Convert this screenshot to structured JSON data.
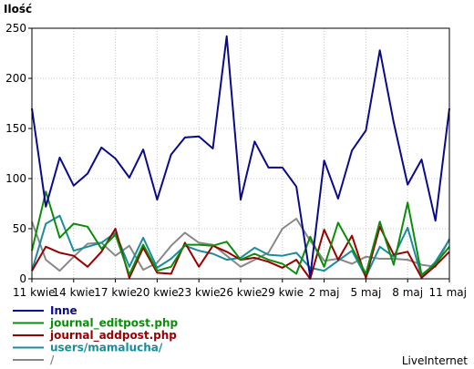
{
  "chart_data": {
    "type": "line",
    "ylabel": "Ilość",
    "ylim": [
      0,
      250
    ],
    "yticks": [
      0,
      50,
      100,
      150,
      200,
      250
    ],
    "grid": true,
    "legend_position": "bottom-left",
    "x_ticks": [
      {
        "index": 0,
        "label": "11 kwie"
      },
      {
        "index": 3,
        "label": "14 kwie"
      },
      {
        "index": 6,
        "label": "17 kwie"
      },
      {
        "index": 9,
        "label": "20 kwie"
      },
      {
        "index": 12,
        "label": "23 kwie"
      },
      {
        "index": 15,
        "label": "26 kwie"
      },
      {
        "index": 18,
        "label": "29 kwie"
      },
      {
        "index": 21,
        "label": "2 maj"
      },
      {
        "index": 24,
        "label": "5 maj"
      },
      {
        "index": 27,
        "label": "8 maj"
      },
      {
        "index": 30,
        "label": "11 maj"
      }
    ],
    "series": [
      {
        "name": "Inne",
        "color": "#0a0a8c",
        "values": [
          170,
          72,
          121,
          93,
          105,
          131,
          120,
          101,
          129,
          79,
          124,
          141,
          142,
          130,
          242,
          79,
          137,
          111,
          111,
          92,
          2,
          118,
          80,
          128,
          148,
          228,
          156,
          94,
          119,
          58,
          170
        ]
      },
      {
        "name": "journal_editpost.php",
        "color": "#0c8c0c",
        "values": [
          28,
          87,
          41,
          55,
          52,
          30,
          44,
          4,
          34,
          8,
          12,
          34,
          34,
          33,
          37,
          19,
          25,
          19,
          15,
          5,
          42,
          12,
          56,
          31,
          5,
          57,
          14,
          76,
          4,
          15,
          32
        ]
      },
      {
        "name": "journal_addpost.php",
        "color": "#990000",
        "values": [
          8,
          32,
          26,
          23,
          12,
          27,
          50,
          1,
          31,
          6,
          5,
          36,
          12,
          33,
          27,
          19,
          21,
          17,
          11,
          19,
          0,
          49,
          19,
          43,
          1,
          52,
          24,
          27,
          1,
          13,
          27
        ]
      },
      {
        "name": "users/mamalucha/",
        "color": "#1a8c9c",
        "values": [
          8,
          55,
          63,
          28,
          32,
          36,
          46,
          12,
          41,
          11,
          20,
          33,
          28,
          25,
          19,
          21,
          31,
          24,
          23,
          26,
          11,
          8,
          18,
          28,
          2,
          32,
          22,
          51,
          2,
          17,
          39
        ]
      },
      {
        "name": "/",
        "color": "#888888",
        "values": [
          57,
          19,
          8,
          22,
          35,
          36,
          23,
          33,
          9,
          16,
          33,
          46,
          36,
          34,
          23,
          12,
          19,
          26,
          50,
          60,
          38,
          18,
          20,
          15,
          22,
          20,
          20,
          19,
          14,
          12,
          40
        ]
      }
    ]
  },
  "footer": {
    "brand": "LiveInternet"
  }
}
